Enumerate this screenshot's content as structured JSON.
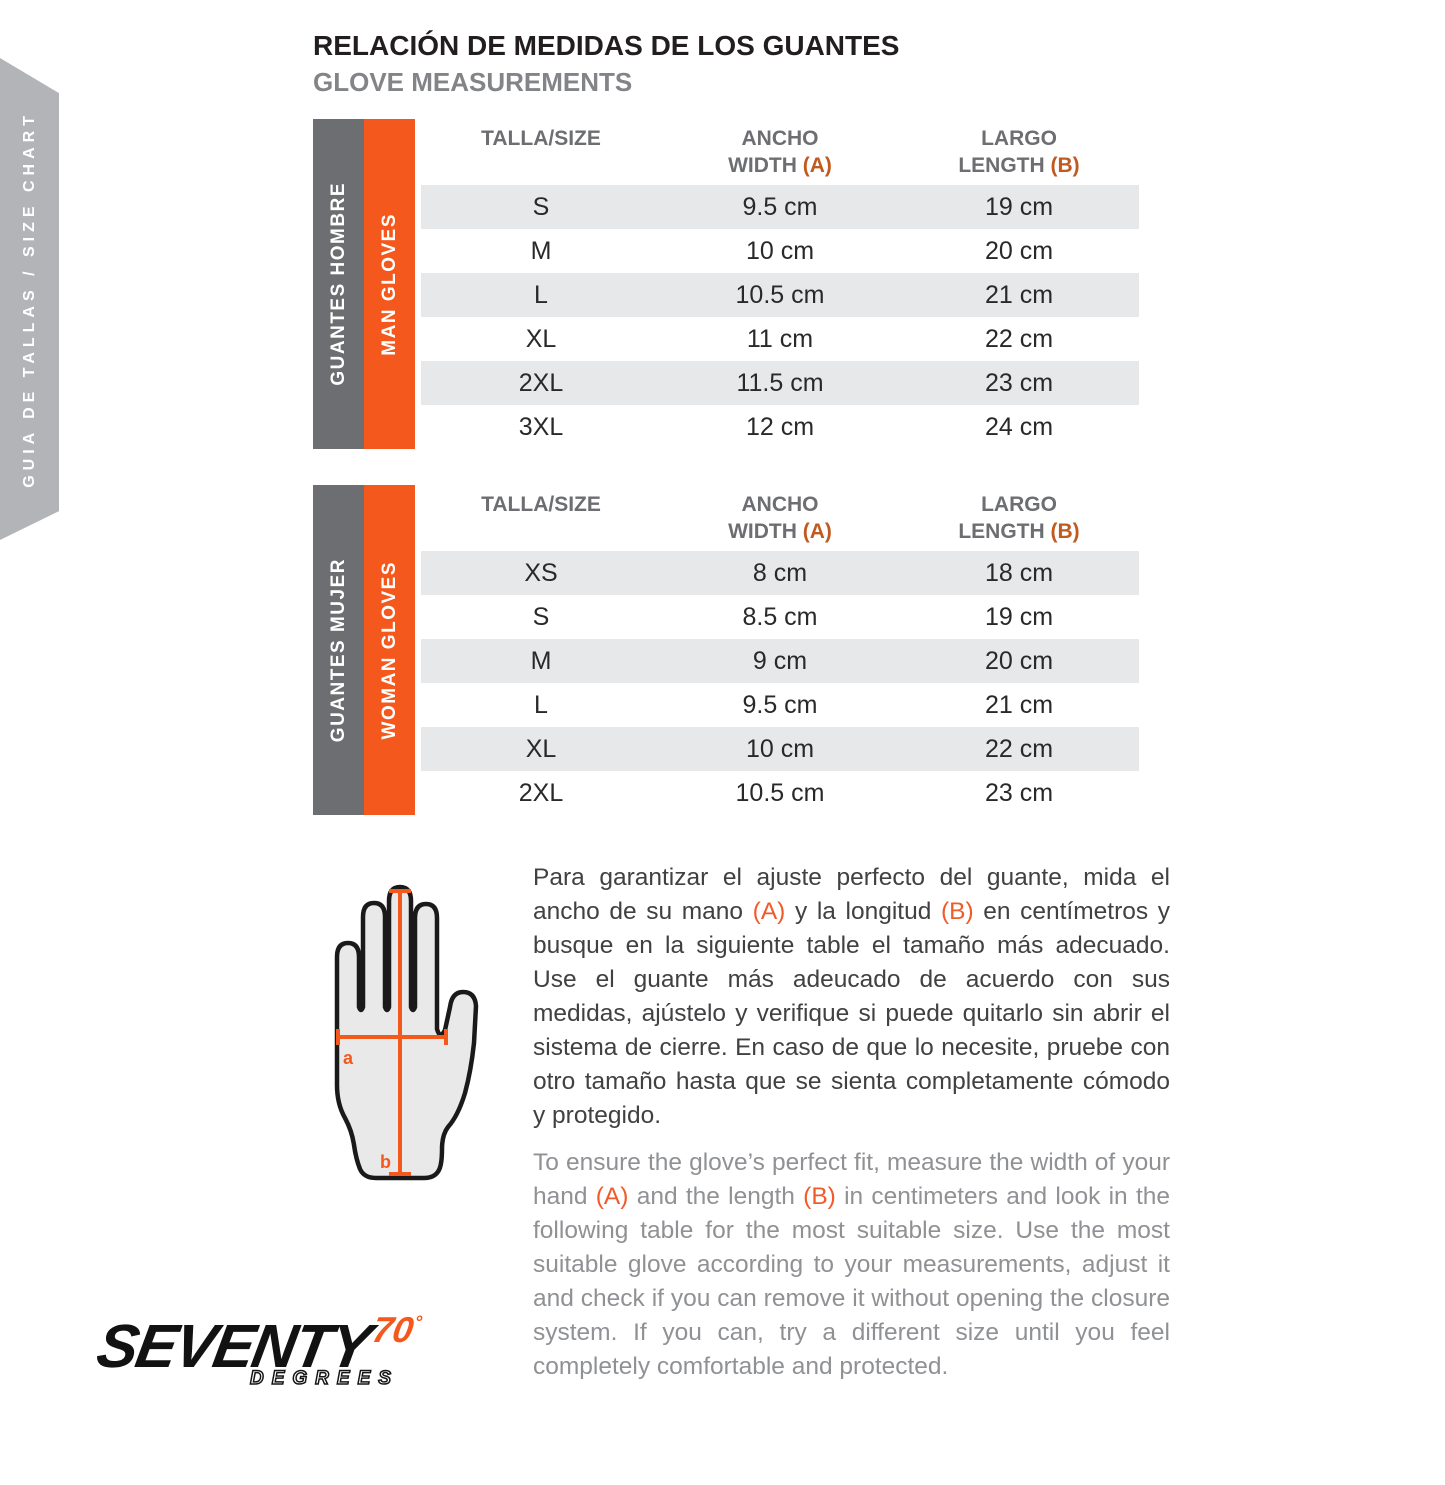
{
  "side_tab": {
    "label": "GUIA DE TALLAS / SIZE CHART"
  },
  "header": {
    "title_es": "RELACIÓN DE MEDIDAS DE LOS GUANTES",
    "title_en": "GLOVE MEASUREMENTS"
  },
  "colors": {
    "orange_bar": "#f4581c",
    "gray_bar": "#6d6e71",
    "ribbon_gray": "#b2b4b7",
    "row_stripe": "#e7e8e9",
    "header_accent": "#c05a1f",
    "paragraph_accent": "#f15a29"
  },
  "tables": [
    {
      "name_es": "GUANTES HOMBRE",
      "name_en": "MAN GLOVES",
      "headers": {
        "size": "TALLA/SIZE",
        "width_top": "ANCHO",
        "width_bottom": [
          {
            "t": "WIDTH "
          },
          {
            "t": "(A)",
            "a": true
          }
        ],
        "length_top": "LARGO",
        "length_bottom": [
          {
            "t": "LENGTH "
          },
          {
            "t": "(B)",
            "a": true
          }
        ]
      },
      "rows": [
        {
          "size": "S",
          "width": "9.5 cm",
          "length": "19 cm"
        },
        {
          "size": "M",
          "width": "10 cm",
          "length": "20 cm"
        },
        {
          "size": "L",
          "width": "10.5 cm",
          "length": "21 cm"
        },
        {
          "size": "XL",
          "width": "11 cm",
          "length": "22 cm"
        },
        {
          "size": "2XL",
          "width": "11.5 cm",
          "length": "23 cm"
        },
        {
          "size": "3XL",
          "width": "12 cm",
          "length": "24 cm"
        }
      ]
    },
    {
      "name_es": "GUANTES MUJER",
      "name_en": "WOMAN GLOVES",
      "headers": {
        "size": "TALLA/SIZE",
        "width_top": "ANCHO",
        "width_bottom": [
          {
            "t": "WIDTH "
          },
          {
            "t": "(A)",
            "a": true
          }
        ],
        "length_top": "LARGO",
        "length_bottom": [
          {
            "t": "LENGTH "
          },
          {
            "t": "(B)",
            "a": true
          }
        ]
      },
      "rows": [
        {
          "size": "XS",
          "width": "8 cm",
          "length": "18 cm"
        },
        {
          "size": "S",
          "width": "8.5 cm",
          "length": "19 cm"
        },
        {
          "size": "M",
          "width": "9 cm",
          "length": "20 cm"
        },
        {
          "size": "L",
          "width": "9.5 cm",
          "length": "21 cm"
        },
        {
          "size": "XL",
          "width": "10 cm",
          "length": "22 cm"
        },
        {
          "size": "2XL",
          "width": "10.5 cm",
          "length": "23 cm"
        }
      ]
    }
  ],
  "hand_figure": {
    "label_a": "a",
    "label_b": "b"
  },
  "instructions": {
    "es": [
      {
        "t": "Para garantizar el ajuste perfecto del guante, mida el ancho de su mano "
      },
      {
        "t": "(A)",
        "a": true
      },
      {
        "t": " y la longitud "
      },
      {
        "t": "(B)",
        "a": true
      },
      {
        "t": " en centímetros y busque en la siguiente table el tamaño más adecuado. Use el guante más adeucado de acuerdo con sus medidas, ajústelo y verifique si puede quitarlo sin abrir el sistema de cierre. En caso de que lo necesite, pruebe con otro tamaño hasta que se sienta completamente cómodo y protegido."
      }
    ],
    "en": [
      {
        "t": "To ensure the glove’s perfect fit, measure the width of your hand "
      },
      {
        "t": "(A)",
        "a": true
      },
      {
        "t": " and the length "
      },
      {
        "t": "(B)",
        "a": true
      },
      {
        "t": " in centimeters and look in the following table for the most suitable size. Use the most suitable glove according to your measurements, adjust it and check if you can remove it without opening the closure system. If you can, try a different size until you feel completely comfortable and protected."
      }
    ]
  },
  "logo": {
    "word": "SEVENTY",
    "number": "70",
    "degree": "°",
    "sub": "DEGREES"
  }
}
